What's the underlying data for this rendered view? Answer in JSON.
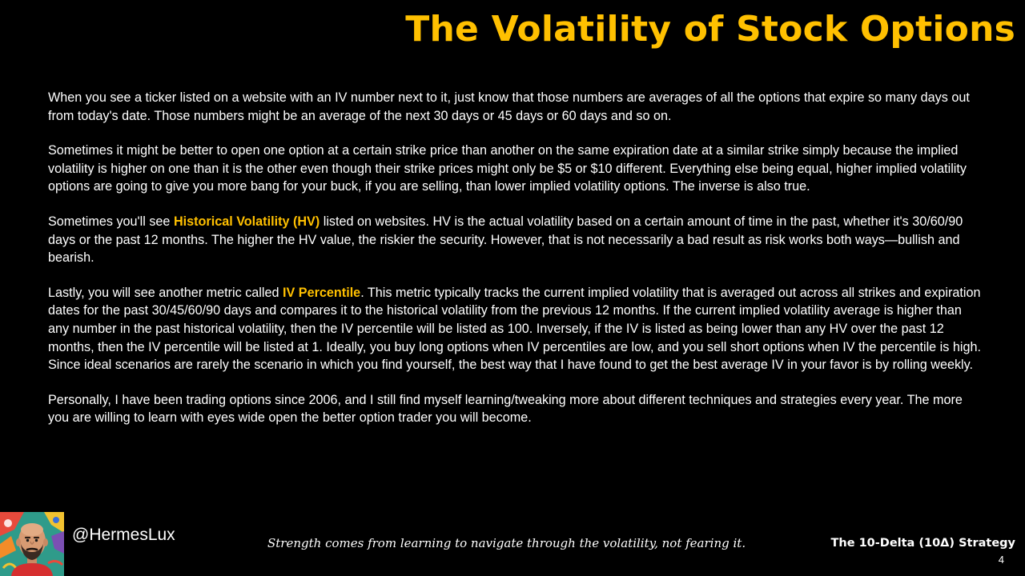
{
  "slide": {
    "title": "The Volatility of Stock Options",
    "paragraphs": {
      "p1": {
        "text": "When you see a ticker listed on a website with an IV number next to it, just know that those numbers are averages of all the options that expire so many days out from today's date. Those numbers might be an average of the next 30 days or 45 days or 60 days and so on."
      },
      "p2": {
        "text": "Sometimes it might be better to open one option at a certain strike price than another on the same expiration date at a similar strike simply because the implied volatility is higher on one than it is the other even though their strike prices might only be $5 or $10 different. Everything else being equal, higher implied volatility options are going to give you more bang for your buck, if you are selling, than lower implied volatility options. The inverse is also true."
      },
      "p3": {
        "before": "Sometimes you'll see ",
        "highlight": "Historical Volatility (HV)",
        "after": " listed on websites. HV is the actual volatility based on a certain amount of time in the past, whether it's 30/60/90 days or the past 12 months. The higher the HV value, the riskier the security. However, that is not necessarily a bad result as risk works both ways—bullish and bearish."
      },
      "p4": {
        "before": "Lastly, you will see another metric called ",
        "highlight": "IV Percentile",
        "after": ". This metric typically tracks the current implied volatility that is averaged out across all strikes and expiration dates for the past 30/45/60/90 days and compares it to the historical volatility from the previous 12 months. If the current implied volatility average is higher than any number in the past historical volatility, then the IV percentile will be listed as 100. Inversely, if the IV is listed as being lower than any HV over the past 12 months, then the IV percentile will be listed at 1. Ideally, you buy long options when IV percentiles are low, and you sell short options when IV the percentile is high. Since ideal scenarios are rarely the scenario in which you find yourself, the best way that I have found to get the best average IV in your favor is by rolling weekly."
      },
      "p5": {
        "text": "Personally, I have been trading options since 2006, and I still find myself learning/tweaking more about different techniques and strategies every year. The more you are willing to learn with eyes wide open the better option trader you will become."
      }
    }
  },
  "footer": {
    "avatar_icon": "cartoon-bald-bearded-man-avatar",
    "handle": "@HermesLux",
    "quote": "Strength comes from learning to navigate through the volatility, not fearing it.",
    "strategy": "The 10-Delta (10Δ) Strategy",
    "page_number": "4"
  },
  "colors": {
    "background": "#000000",
    "accent": "#FFC000",
    "text": "#FFFFFF"
  }
}
